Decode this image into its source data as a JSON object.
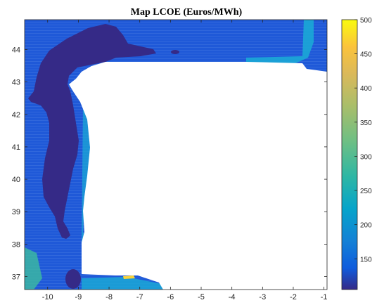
{
  "chart_data": {
    "type": "heatmap",
    "title": "Map LCOE (Euros/MWh)",
    "xlabel": "",
    "ylabel": "",
    "xlim": [
      -10.75,
      -0.9
    ],
    "ylim": [
      36.6,
      44.92
    ],
    "x_ticks": [
      -10,
      -9,
      -8,
      -7,
      -6,
      -5,
      -4,
      -3,
      -2,
      -1
    ],
    "y_ticks": [
      37,
      38,
      39,
      40,
      41,
      42,
      43,
      44
    ],
    "colorbar": {
      "label": "",
      "range": [
        105,
        500
      ],
      "ticks": [
        150,
        200,
        250,
        300,
        350,
        400,
        450,
        500
      ],
      "colormap": "parula"
    },
    "background_lcoe": 150,
    "land_color": "#ffffff",
    "low_cost_zone": {
      "lcoe": 108,
      "description_colors": [
        "#352a87"
      ]
    },
    "colors": {
      "low": "#352a87",
      "base": "#1f59d8",
      "mid": "#1ba7d6",
      "teal": "#3cbba0",
      "high": "#f9fb0e"
    }
  }
}
